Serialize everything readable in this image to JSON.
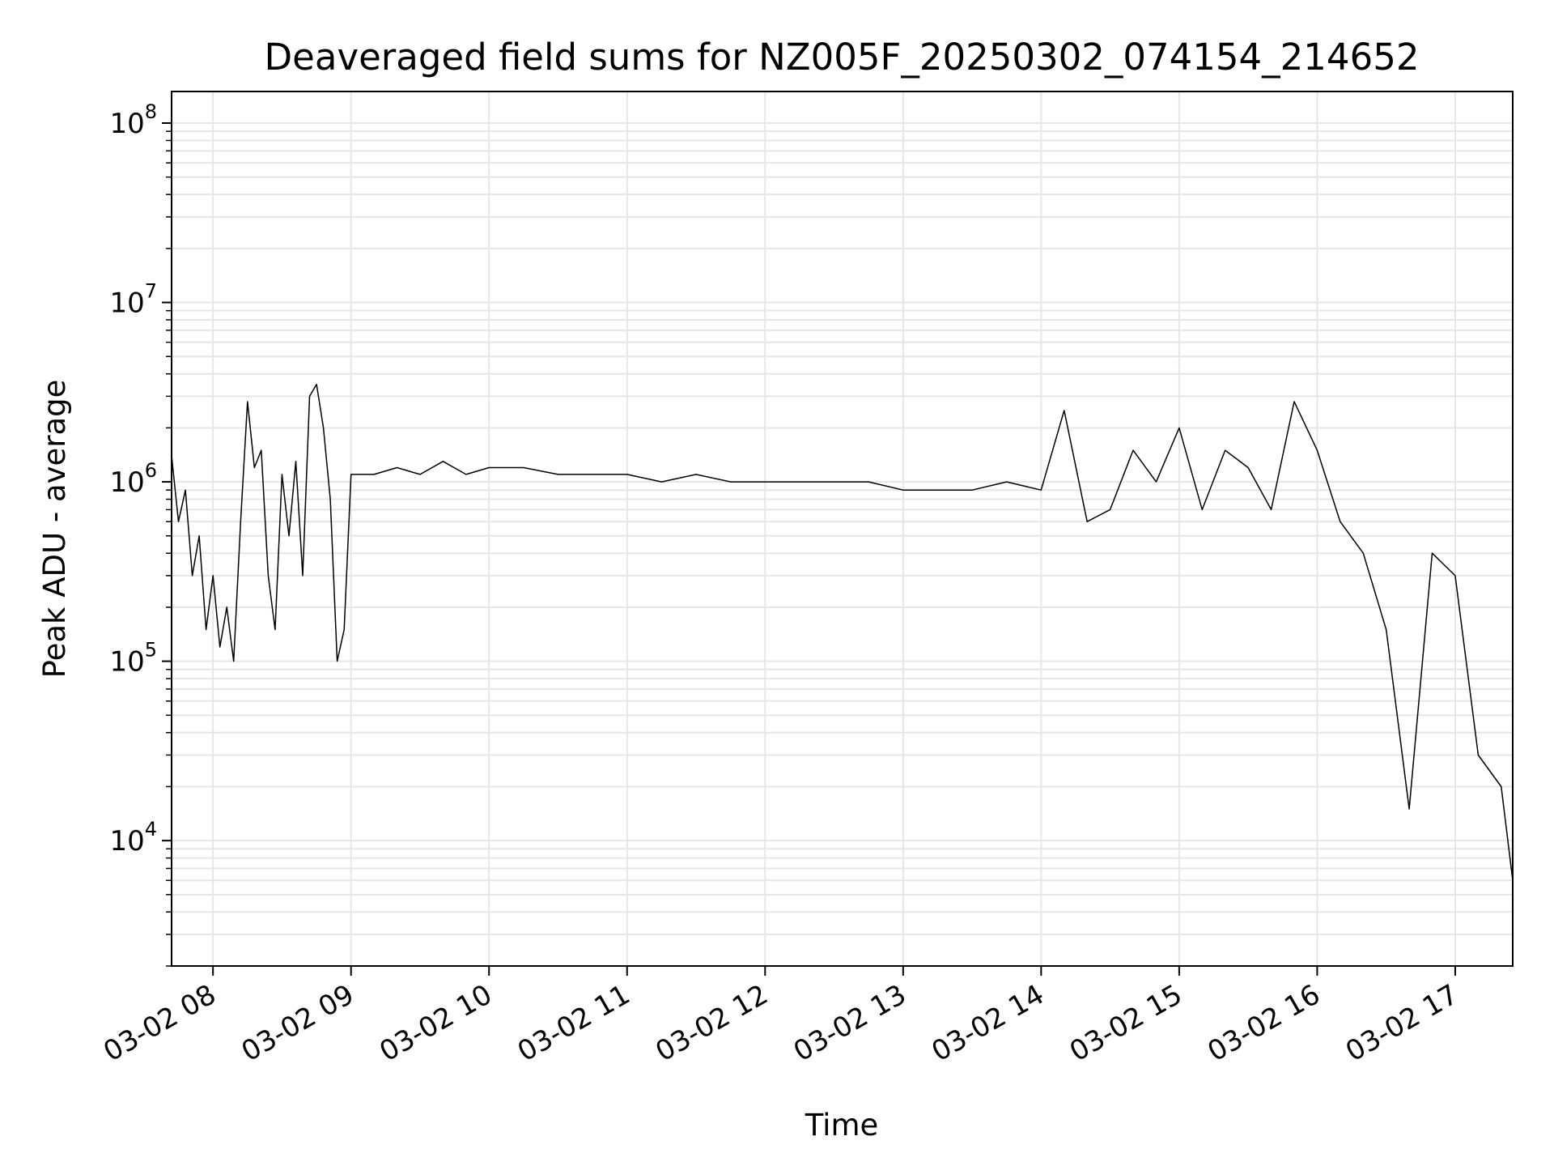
{
  "chart_data": {
    "type": "line",
    "title": "Deaveraged field sums for NZ005F_20250302_074154_214652",
    "xlabel": "Time",
    "ylabel": "Peak ADU - average",
    "yscale": "log",
    "ylim": [
      2000,
      150000000
    ],
    "xlim": [
      "03-02 07:42",
      "03-02 17:25"
    ],
    "x_ticks": [
      "03-02 08",
      "03-02 09",
      "03-02 10",
      "03-02 11",
      "03-02 12",
      "03-02 13",
      "03-02 14",
      "03-02 15",
      "03-02 16",
      "03-02 17"
    ],
    "y_ticks": [
      {
        "base": "10",
        "exp": "4",
        "value": 10000
      },
      {
        "base": "10",
        "exp": "5",
        "value": 100000
      },
      {
        "base": "10",
        "exp": "6",
        "value": 1000000
      },
      {
        "base": "10",
        "exp": "7",
        "value": 10000000
      },
      {
        "base": "10",
        "exp": "8",
        "value": 100000000
      }
    ],
    "grid": true,
    "line_color": "#000000",
    "series": [
      {
        "x": [
          "03-02 07:42",
          "03-02 07:45",
          "03-02 07:48",
          "03-02 07:51",
          "03-02 07:54",
          "03-02 07:57",
          "03-02 08:00",
          "03-02 08:03",
          "03-02 08:06",
          "03-02 08:09",
          "03-02 08:12",
          "03-02 08:15",
          "03-02 08:18",
          "03-02 08:21",
          "03-02 08:24",
          "03-02 08:27",
          "03-02 08:30",
          "03-02 08:33",
          "03-02 08:36",
          "03-02 08:39",
          "03-02 08:42",
          "03-02 08:45",
          "03-02 08:48",
          "03-02 08:51",
          "03-02 08:54",
          "03-02 08:57",
          "03-02 09:00",
          "03-02 09:10",
          "03-02 09:20",
          "03-02 09:30",
          "03-02 09:40",
          "03-02 09:50",
          "03-02 10:00",
          "03-02 10:15",
          "03-02 10:30",
          "03-02 10:45",
          "03-02 11:00",
          "03-02 11:15",
          "03-02 11:30",
          "03-02 11:45",
          "03-02 12:00",
          "03-02 12:15",
          "03-02 12:30",
          "03-02 12:45",
          "03-02 13:00",
          "03-02 13:15",
          "03-02 13:30",
          "03-02 13:45",
          "03-02 14:00",
          "03-02 14:10",
          "03-02 14:20",
          "03-02 14:30",
          "03-02 14:40",
          "03-02 14:50",
          "03-02 15:00",
          "03-02 15:10",
          "03-02 15:20",
          "03-02 15:30",
          "03-02 15:40",
          "03-02 15:50",
          "03-02 16:00",
          "03-02 16:10",
          "03-02 16:20",
          "03-02 16:30",
          "03-02 16:40",
          "03-02 16:50",
          "03-02 17:00",
          "03-02 17:10",
          "03-02 17:20",
          "03-02 17:25"
        ],
        "y": [
          1400000,
          600000,
          900000,
          300000,
          500000,
          150000,
          300000,
          120000,
          200000,
          100000,
          600000,
          2800000,
          1200000,
          1500000,
          300000,
          150000,
          1100000,
          500000,
          1300000,
          300000,
          3000000,
          3500000,
          2000000,
          800000,
          100000,
          150000,
          1100000,
          1100000,
          1200000,
          1100000,
          1300000,
          1100000,
          1200000,
          1200000,
          1100000,
          1100000,
          1100000,
          1000000,
          1100000,
          1000000,
          1000000,
          1000000,
          1000000,
          1000000,
          900000,
          900000,
          900000,
          1000000,
          900000,
          2500000,
          600000,
          700000,
          1500000,
          1000000,
          2000000,
          700000,
          1500000,
          1200000,
          700000,
          2800000,
          1500000,
          600000,
          400000,
          150000,
          15000,
          400000,
          300000,
          30000,
          20000,
          6000
        ]
      }
    ]
  }
}
